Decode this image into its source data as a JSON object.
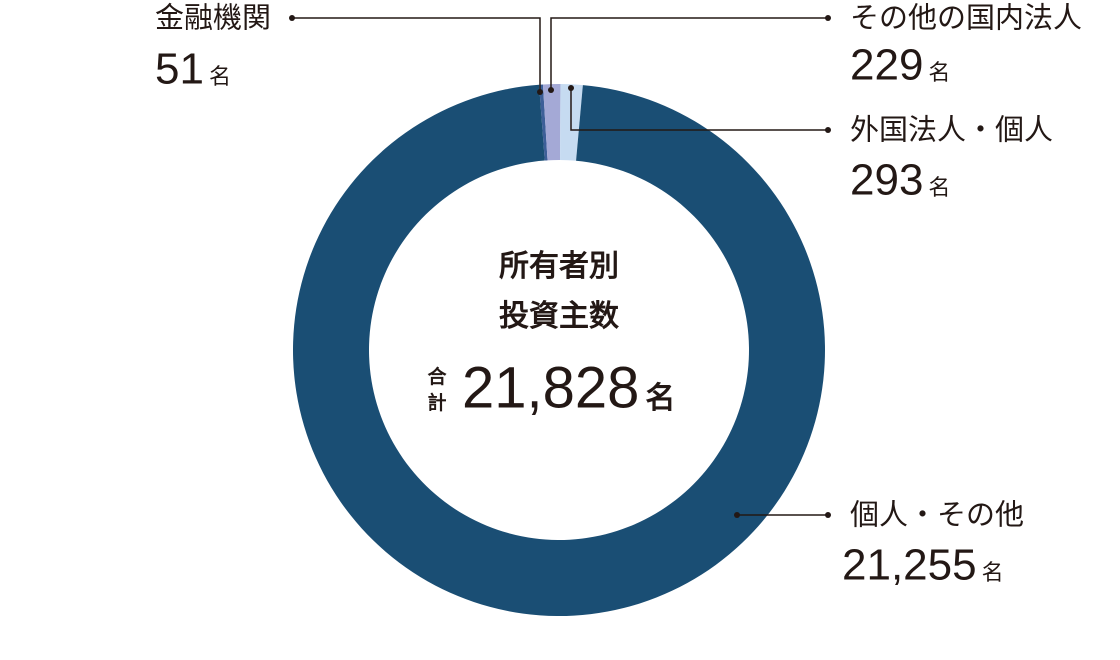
{
  "chart_data": {
    "type": "donut",
    "title_lines": [
      "所有者別",
      "投資主数"
    ],
    "total_label": "合計",
    "total": {
      "value": 21828,
      "label": "21,828"
    },
    "unit": "名",
    "categories": [
      "金融機関",
      "その他の国内法人",
      "外国法人・個人",
      "個人・その他"
    ],
    "values": [
      51,
      229,
      293,
      21255
    ],
    "value_labels": [
      "51",
      "229",
      "293",
      "21,255"
    ],
    "colors": [
      "#3d5f98",
      "#a4a9d6",
      "#c6dbf1",
      "#1a4e74"
    ]
  }
}
